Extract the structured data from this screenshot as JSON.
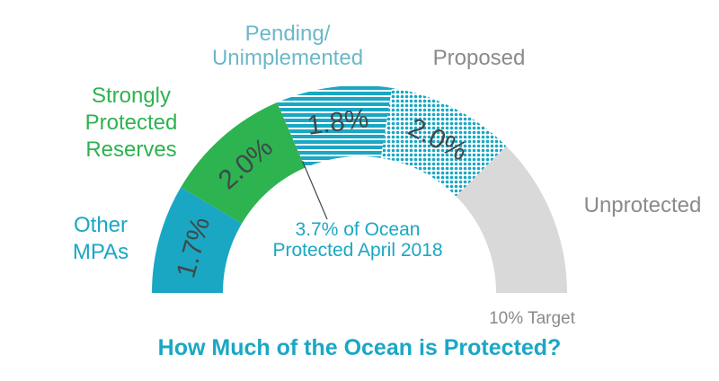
{
  "chart_data": {
    "type": "gauge",
    "title": "How Much of the Ocean is Protected?",
    "scale_max_percent": 10,
    "target_label": "10% Target",
    "center_annotation": [
      "3.7% of Ocean",
      "Protected April 2018"
    ],
    "segments": [
      {
        "name_lines": [
          "Other",
          "MPAs"
        ],
        "value": 1.7,
        "value_label": "1.7%",
        "color": "#1aa7c4",
        "pattern": "solid"
      },
      {
        "name_lines": [
          "Strongly",
          "Protected",
          "Reserves"
        ],
        "value": 2.0,
        "value_label": "2.0%",
        "color": "#2db350",
        "pattern": "solid"
      },
      {
        "name_lines": [
          "Pending/",
          "Unimplemented"
        ],
        "value": 1.8,
        "value_label": "1.8%",
        "color": "#1aa7c4",
        "pattern": "stripes"
      },
      {
        "name_lines": [
          "Proposed"
        ],
        "value": 2.0,
        "value_label": "2.0%",
        "color": "#1aa7c4",
        "pattern": "dots"
      },
      {
        "name_lines": [
          "Unprotected"
        ],
        "value": 2.5,
        "value_label": "",
        "color": "#d9d9d9",
        "pattern": "solid"
      }
    ],
    "label_colors": {
      "other_mpas": "#1aa7c4",
      "strongly_protected": "#2db350",
      "pending": "#6bb8c8",
      "proposed": "#8a8a8a",
      "unprotected": "#8a8a8a",
      "annotation": "#1aa7c4",
      "title": "#1aa7c4",
      "value_text": "#3d4a4a"
    }
  }
}
